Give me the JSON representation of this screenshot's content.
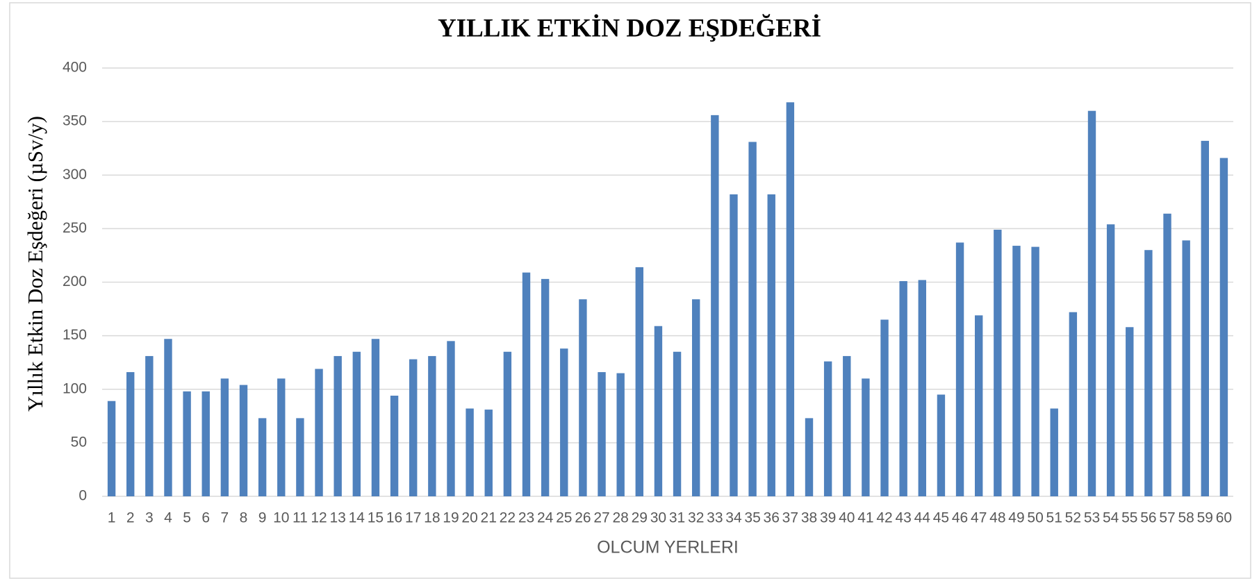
{
  "chart_data": {
    "type": "bar",
    "title": "YILLIK ETKİN DOZ EŞDEĞERİ",
    "x_label": "OLCUM YERLERI",
    "y_label": "Yıllık Etkin Doz Eşdeğeri (µSv/y)",
    "categories": [
      "1",
      "2",
      "3",
      "4",
      "5",
      "6",
      "7",
      "8",
      "9",
      "10",
      "11",
      "12",
      "13",
      "14",
      "15",
      "16",
      "17",
      "18",
      "19",
      "20",
      "21",
      "22",
      "23",
      "24",
      "25",
      "26",
      "27",
      "28",
      "29",
      "30",
      "31",
      "32",
      "33",
      "34",
      "35",
      "36",
      "37",
      "38",
      "39",
      "40",
      "41",
      "42",
      "43",
      "44",
      "45",
      "46",
      "47",
      "48",
      "49",
      "50",
      "51",
      "52",
      "53",
      "54",
      "55",
      "56",
      "57",
      "58",
      "59",
      "60"
    ],
    "values": [
      89,
      116,
      131,
      147,
      98,
      98,
      110,
      104,
      73,
      110,
      73,
      119,
      131,
      135,
      147,
      94,
      128,
      131,
      145,
      82,
      81,
      135,
      209,
      203,
      138,
      184,
      116,
      115,
      214,
      159,
      135,
      184,
      356,
      282,
      331,
      282,
      368,
      73,
      126,
      131,
      110,
      165,
      201,
      202,
      95,
      237,
      169,
      249,
      234,
      233,
      82,
      172,
      360,
      254,
      158,
      230,
      264,
      239,
      332,
      316
    ],
    "color": "#4f81bd",
    "ylim": [
      0,
      400
    ],
    "yticks": [
      0,
      50,
      100,
      150,
      200,
      250,
      300,
      350,
      400
    ],
    "grid": true
  }
}
